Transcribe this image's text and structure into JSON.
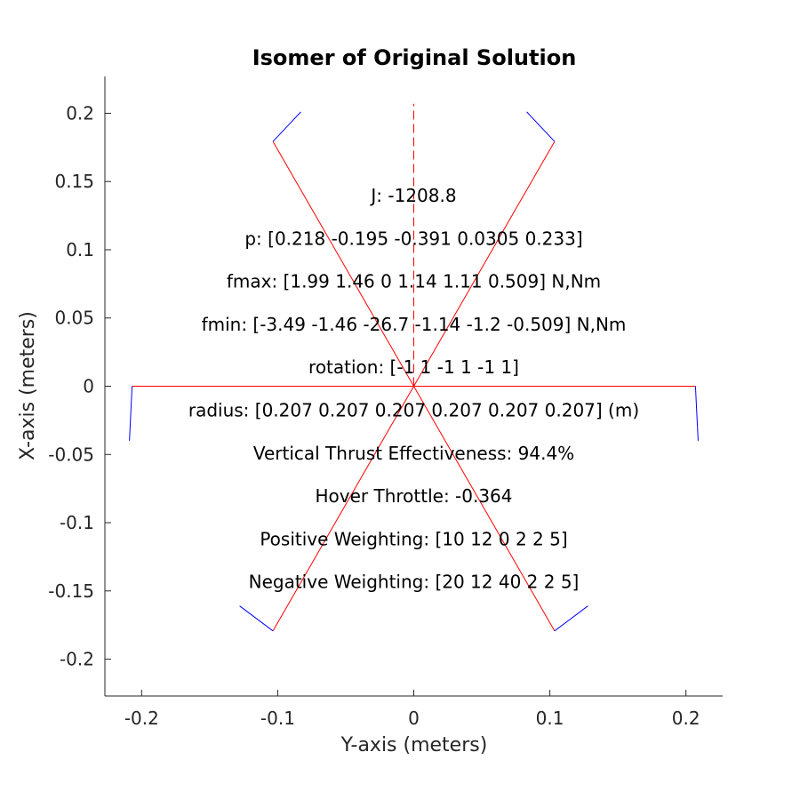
{
  "chart_data": {
    "type": "line",
    "title": "Isomer of Original Solution",
    "xlabel": "Y-axis (meters)",
    "ylabel": "X-axis (meters)",
    "xlim": [
      -0.227,
      0.227
    ],
    "ylim": [
      -0.227,
      0.227
    ],
    "x_ticks": [
      -0.2,
      -0.1,
      0,
      0.1,
      0.2
    ],
    "x_tick_labels": [
      "-0.2",
      "-0.1",
      "0",
      "0.1",
      "0.2"
    ],
    "y_ticks": [
      0.2,
      0.15,
      0.1,
      0.05,
      0,
      -0.05,
      -0.1,
      -0.15,
      -0.2
    ],
    "y_tick_labels": [
      "0.2",
      "0.15",
      "0.1",
      "0.05",
      "0",
      "-0.05",
      "-0.1",
      "-0.15",
      "-0.2"
    ],
    "grid": false,
    "legend": "none",
    "colors": {
      "arms": "#ff0000",
      "props": "#0000ff",
      "text": "#000000",
      "axis": "#262626"
    },
    "series": [
      {
        "color": "#ff0000",
        "style": "solid",
        "x": [
          0,
          0.1035
        ],
        "y": [
          0,
          0.1793
        ]
      },
      {
        "color": "#ff0000",
        "style": "solid",
        "x": [
          0,
          -0.1035
        ],
        "y": [
          0,
          0.1793
        ]
      },
      {
        "color": "#ff0000",
        "style": "solid",
        "x": [
          0,
          -0.207
        ],
        "y": [
          0,
          0
        ]
      },
      {
        "color": "#ff0000",
        "style": "solid",
        "x": [
          0,
          0.207
        ],
        "y": [
          0,
          0
        ]
      },
      {
        "color": "#ff0000",
        "style": "solid",
        "x": [
          0,
          -0.1035
        ],
        "y": [
          0,
          -0.1793
        ]
      },
      {
        "color": "#ff0000",
        "style": "solid",
        "x": [
          0,
          0.1035
        ],
        "y": [
          0,
          -0.1793
        ]
      },
      {
        "color": "#ff0000",
        "style": "dashed",
        "x": [
          0,
          0
        ],
        "y": [
          0,
          0.207
        ]
      },
      {
        "color": "#0000ff",
        "style": "solid",
        "x": [
          0.1035,
          0.083
        ],
        "y": [
          0.1793,
          0.201
        ]
      },
      {
        "color": "#0000ff",
        "style": "solid",
        "x": [
          -0.1035,
          -0.083
        ],
        "y": [
          0.1793,
          0.201
        ]
      },
      {
        "color": "#0000ff",
        "style": "solid",
        "x": [
          -0.207,
          -0.209
        ],
        "y": [
          0,
          -0.04
        ]
      },
      {
        "color": "#0000ff",
        "style": "solid",
        "x": [
          0.207,
          0.209
        ],
        "y": [
          0,
          -0.04
        ]
      },
      {
        "color": "#0000ff",
        "style": "solid",
        "x": [
          -0.1035,
          -0.128
        ],
        "y": [
          -0.1793,
          -0.161
        ]
      },
      {
        "color": "#0000ff",
        "style": "solid",
        "x": [
          0.1035,
          0.128
        ],
        "y": [
          -0.1793,
          -0.161
        ]
      }
    ],
    "annotations": [
      "J: -1208.8",
      "p: [0.218 -0.195 -0.391 0.0305 0.233]",
      "fmax: [1.99 1.46 0 1.14 1.11 0.509] N,Nm",
      "fmin: [-3.49 -1.46 -26.7 -1.14 -1.2 -0.509] N,Nm",
      "rotation: [-1 1 -1 1 -1 1]",
      "radius: [0.207 0.207 0.207 0.207 0.207 0.207] (m)",
      "Vertical Thrust Effectiveness: 94.4%",
      "Hover Throttle: -0.364",
      "Positive Weighting: [10 12 0 2 2 5]",
      "Negative Weighting: [20 12 40 2 2 5]"
    ]
  }
}
